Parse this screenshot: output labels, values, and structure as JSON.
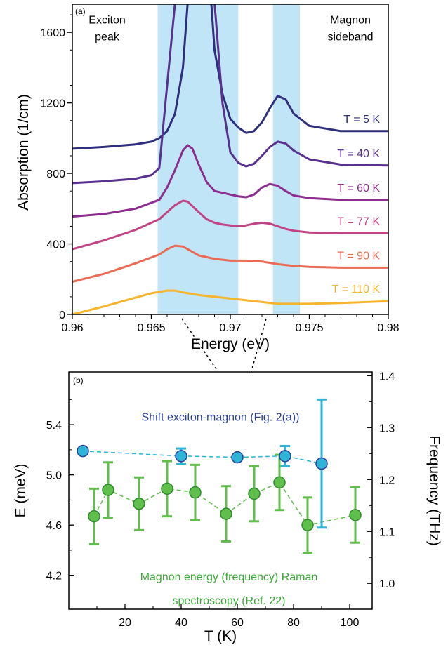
{
  "chart_data": [
    {
      "type": "line",
      "panel_label": "(a)",
      "xlabel": "Energy (eV)",
      "ylabel": "Absorption (1/cm)",
      "xlim": [
        0.96,
        0.98
      ],
      "ylim": [
        0,
        1760
      ],
      "x_ticks": [
        0.96,
        0.965,
        0.97,
        0.975,
        0.98
      ],
      "x_tick_labels": [
        "0.96",
        "0.965",
        "0.97",
        "0.975",
        "0.98"
      ],
      "y_ticks": [
        0,
        400,
        800,
        1200,
        1600
      ],
      "y_tick_labels": [
        "0",
        "400",
        "800",
        "1200",
        "1600"
      ],
      "shaded_bands": [
        [
          0.9654,
          0.9705
        ],
        [
          0.9727,
          0.9744
        ]
      ],
      "shade_color": "#bfe5f7",
      "annotations": [
        {
          "lines": [
            "Exciton",
            "peak"
          ],
          "x": 0.9622,
          "y": 1650
        },
        {
          "lines": [
            "Magnon",
            "sideband"
          ],
          "x": 0.9776,
          "y": 1650
        }
      ],
      "series": [
        {
          "name": "T = 5 K",
          "color": "#2f2f7e",
          "x": [
            0.96,
            0.962,
            0.964,
            0.965,
            0.9655,
            0.966,
            0.9665,
            0.967,
            0.9673,
            0.9676,
            0.9685,
            0.9688,
            0.969,
            0.9695,
            0.97,
            0.9705,
            0.971,
            0.9715,
            0.972,
            0.9725,
            0.973,
            0.9735,
            0.974,
            0.975,
            0.977,
            0.98
          ],
          "y": [
            940,
            950,
            965,
            980,
            1000,
            1040,
            1140,
            1400,
            1770,
            1770,
            1770,
            1760,
            1500,
            1250,
            1110,
            1060,
            1030,
            1040,
            1090,
            1170,
            1240,
            1220,
            1140,
            1070,
            1040,
            1040
          ]
        },
        {
          "name": "T = 40 K",
          "color": "#59318f",
          "x": [
            0.96,
            0.962,
            0.964,
            0.965,
            0.9655,
            0.966,
            0.9665,
            0.967,
            0.9675,
            0.968,
            0.9685,
            0.969,
            0.9695,
            0.97,
            0.9705,
            0.971,
            0.9715,
            0.972,
            0.9725,
            0.973,
            0.9735,
            0.974,
            0.975,
            0.977,
            0.98
          ],
          "y": [
            745,
            755,
            770,
            790,
            830,
            1300,
            1770,
            1770,
            1770,
            1770,
            1770,
            1770,
            1200,
            920,
            860,
            840,
            855,
            900,
            950,
            980,
            970,
            930,
            880,
            850,
            845
          ]
        },
        {
          "name": "T = 60 K",
          "color": "#8c2d8f",
          "x": [
            0.96,
            0.962,
            0.964,
            0.9655,
            0.966,
            0.9665,
            0.967,
            0.9673,
            0.9676,
            0.968,
            0.9685,
            0.969,
            0.9695,
            0.97,
            0.9705,
            0.971,
            0.9715,
            0.972,
            0.9725,
            0.973,
            0.9735,
            0.974,
            0.975,
            0.977,
            0.98
          ],
          "y": [
            555,
            570,
            600,
            650,
            720,
            820,
            930,
            960,
            940,
            850,
            750,
            700,
            690,
            680,
            670,
            665,
            680,
            720,
            740,
            730,
            700,
            675,
            660,
            650,
            650
          ]
        },
        {
          "name": "T = 77 K",
          "color": "#c14585",
          "x": [
            0.96,
            0.962,
            0.964,
            0.9655,
            0.966,
            0.9665,
            0.967,
            0.9673,
            0.968,
            0.9685,
            0.969,
            0.9695,
            0.97,
            0.9705,
            0.971,
            0.9715,
            0.972,
            0.9725,
            0.973,
            0.9735,
            0.974,
            0.975,
            0.977,
            0.98
          ],
          "y": [
            370,
            420,
            480,
            540,
            580,
            620,
            645,
            640,
            580,
            540,
            520,
            510,
            505,
            500,
            505,
            515,
            520,
            515,
            500,
            485,
            475,
            465,
            460,
            460
          ]
        },
        {
          "name": "T = 90 K",
          "color": "#e96b55",
          "x": [
            0.96,
            0.962,
            0.964,
            0.9655,
            0.966,
            0.9665,
            0.967,
            0.9675,
            0.968,
            0.969,
            0.97,
            0.971,
            0.972,
            0.973,
            0.974,
            0.975,
            0.977,
            0.98
          ],
          "y": [
            185,
            230,
            290,
            340,
            370,
            390,
            385,
            360,
            335,
            315,
            305,
            305,
            300,
            285,
            275,
            270,
            265,
            265
          ]
        },
        {
          "name": "T = 110 K",
          "color": "#f5b52e",
          "x": [
            0.96,
            0.962,
            0.964,
            0.965,
            0.966,
            0.9665,
            0.967,
            0.968,
            0.969,
            0.97,
            0.971,
            0.972,
            0.973,
            0.974,
            0.975,
            0.977,
            0.98
          ],
          "y": [
            0,
            45,
            95,
            120,
            135,
            135,
            125,
            110,
            100,
            90,
            80,
            70,
            60,
            60,
            60,
            65,
            75
          ]
        }
      ]
    },
    {
      "type": "scatter",
      "panel_label": "(b)",
      "xlabel": "T (K)",
      "ylabel": "E (meV)",
      "ylabel_right": "Frequency (THz)",
      "xlim": [
        0,
        108
      ],
      "ylim": [
        3.93,
        5.82
      ],
      "x_ticks": [
        20,
        40,
        60,
        80,
        100
      ],
      "x_tick_labels": [
        "20",
        "40",
        "60",
        "80",
        "100"
      ],
      "y_ticks": [
        4.2,
        4.6,
        5.0,
        5.4
      ],
      "y_tick_labels": [
        "4.2",
        "4.6",
        "5.0",
        "5.4"
      ],
      "right_ticks_thz": [
        1.0,
        1.1,
        1.2,
        1.3,
        1.4
      ],
      "right_tick_labels": [
        "1.0",
        "1.1",
        "1.2",
        "1.3",
        "1.4"
      ],
      "mev_per_thz": 4.1357,
      "annotations": [
        {
          "text": "Shift exciton-magnon (Fig. 2(a))",
          "color": "#2b3f9c",
          "x": 54,
          "y": 5.43
        },
        {
          "text": "Magnon energy (frequency) Raman",
          "color": "#3aa935",
          "x": 57,
          "y": 4.16
        },
        {
          "text": "spectroscopy (Ref. 22)",
          "color": "#3aa935",
          "x": 57,
          "y": 3.97
        }
      ],
      "series": [
        {
          "name": "Shift exciton-magnon",
          "color": "#2fb3d7",
          "edge": "#2b3f9c",
          "x": [
            5,
            40,
            60,
            77,
            90
          ],
          "y": [
            5.19,
            5.15,
            5.14,
            5.15,
            5.09
          ],
          "err": [
            0,
            0.06,
            0,
            0.08,
            0.51
          ]
        },
        {
          "name": "Magnon energy Raman",
          "color": "#5fbf4a",
          "edge": "#2e8a2c",
          "x": [
            9,
            14,
            25,
            35,
            45,
            56,
            66,
            75,
            85,
            102
          ],
          "y": [
            4.67,
            4.88,
            4.77,
            4.89,
            4.86,
            4.69,
            4.85,
            4.94,
            4.6,
            4.68
          ],
          "err": [
            0.22,
            0.22,
            0.21,
            0.22,
            0.22,
            0.22,
            0.22,
            0.22,
            0.22,
            0.22
          ]
        }
      ]
    }
  ]
}
